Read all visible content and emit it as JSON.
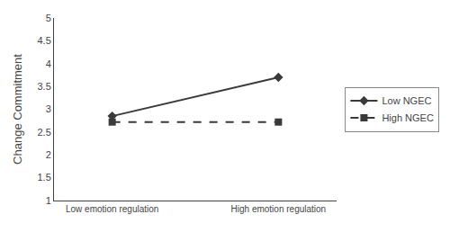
{
  "chart_data": {
    "type": "line",
    "categories": [
      "Low emotion regulation",
      "High emotion regulation"
    ],
    "series": [
      {
        "name": "Low NGEC",
        "color": "#3a3a3a",
        "marker": "diamond",
        "line_style": "solid",
        "values": [
          2.85,
          3.7
        ]
      },
      {
        "name": "High NGEC",
        "color": "#3a3a3a",
        "marker": "square",
        "line_style": "dashed",
        "values": [
          2.72,
          2.72
        ]
      }
    ],
    "y_label": "Change Commitment",
    "ylim": [
      1,
      5
    ],
    "yticks": [
      1,
      1.5,
      2,
      2.5,
      3,
      3.5,
      4,
      4.5,
      5
    ],
    "grid": false,
    "legend": "right"
  }
}
